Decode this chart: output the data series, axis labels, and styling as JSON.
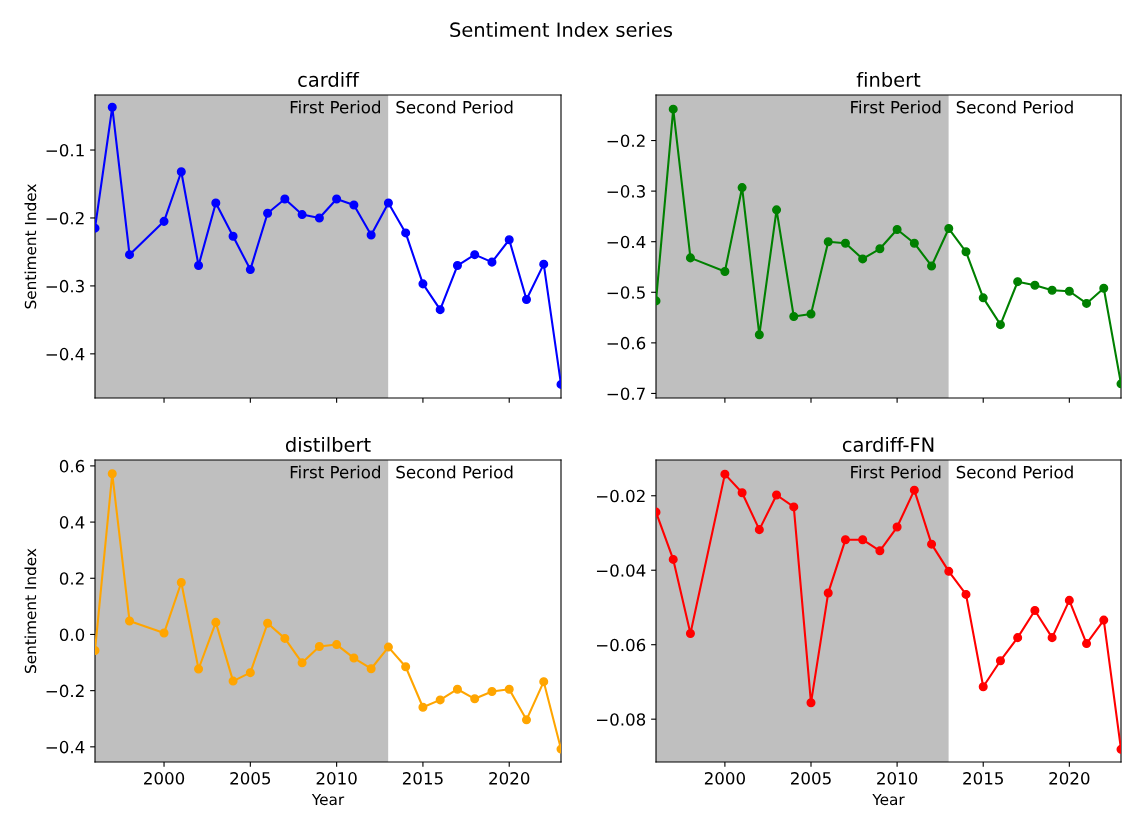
{
  "chart_data": [
    {
      "type": "line",
      "title": "cardiff",
      "ylabel": "Sentiment Index",
      "annotations": [
        "Sentiment Index series"
      ],
      "x": [
        1996,
        1997,
        1998,
        2000,
        2001,
        2002,
        2003,
        2004,
        2005,
        2006,
        2007,
        2008,
        2009,
        2010,
        2011,
        2012,
        2013,
        2014,
        2015,
        2016,
        2017,
        2018,
        2019,
        2020,
        2021,
        2022,
        2023
      ],
      "series": [
        {
          "color": "#0000ff",
          "values": [
            -0.215,
            -0.037,
            -0.254,
            -0.205,
            -0.132,
            -0.27,
            -0.178,
            -0.227,
            -0.276,
            -0.193,
            -0.172,
            -0.195,
            -0.2,
            -0.172,
            -0.181,
            -0.225,
            -0.178,
            -0.222,
            -0.297,
            -0.335,
            -0.27,
            -0.254,
            -0.265,
            -0.232,
            -0.32,
            -0.268,
            -0.445
          ]
        }
      ],
      "xlim": [
        1996,
        2023
      ],
      "xticks": [
        2000,
        2005,
        2010,
        2015,
        2020
      ],
      "ylim": [
        -0.465,
        -0.019
      ],
      "yticks": [
        -0.4,
        -0.3,
        -0.2,
        -0.1
      ],
      "bands": [
        {
          "axis": "x",
          "from": 1996,
          "to": 2013,
          "label": "First Period",
          "color": "#bfbfbf"
        },
        {
          "axis": "x",
          "from": 2013,
          "to": 2023,
          "label": "Second Period",
          "color": "#ffffff"
        }
      ],
      "tick_labels": "y",
      "marker": "circle",
      "line_style": "solid",
      "grid": false,
      "legend": false
    },
    {
      "type": "line",
      "title": "finbert",
      "x": [
        1996,
        1997,
        1998,
        2000,
        2001,
        2002,
        2003,
        2004,
        2005,
        2006,
        2007,
        2008,
        2009,
        2010,
        2011,
        2012,
        2013,
        2014,
        2015,
        2016,
        2017,
        2018,
        2019,
        2020,
        2021,
        2022,
        2023
      ],
      "series": [
        {
          "color": "#008000",
          "values": [
            -0.517,
            -0.138,
            -0.432,
            -0.459,
            -0.293,
            -0.584,
            -0.337,
            -0.548,
            -0.543,
            -0.4,
            -0.403,
            -0.434,
            -0.414,
            -0.376,
            -0.403,
            -0.448,
            -0.374,
            -0.42,
            -0.511,
            -0.564,
            -0.479,
            -0.486,
            -0.496,
            -0.498,
            -0.522,
            -0.492,
            -0.681
          ]
        }
      ],
      "xlim": [
        1996,
        2023
      ],
      "xticks": [
        2000,
        2005,
        2010,
        2015,
        2020
      ],
      "ylim": [
        -0.709,
        -0.11
      ],
      "yticks": [
        -0.7,
        -0.6,
        -0.5,
        -0.4,
        -0.3,
        -0.2
      ],
      "bands": [
        {
          "axis": "x",
          "from": 1996,
          "to": 2013,
          "label": "First Period",
          "color": "#bfbfbf"
        },
        {
          "axis": "x",
          "from": 2013,
          "to": 2023,
          "label": "Second Period",
          "color": "#ffffff"
        }
      ],
      "tick_labels": "y",
      "marker": "circle",
      "line_style": "solid",
      "grid": false,
      "legend": false
    },
    {
      "type": "line",
      "title": "distilbert",
      "xlabel": "Year",
      "ylabel": "Sentiment Index",
      "x": [
        1996,
        1997,
        1998,
        2000,
        2001,
        2002,
        2003,
        2004,
        2005,
        2006,
        2007,
        2008,
        2009,
        2010,
        2011,
        2012,
        2013,
        2014,
        2015,
        2016,
        2017,
        2018,
        2019,
        2020,
        2021,
        2022,
        2023
      ],
      "series": [
        {
          "color": "#ffa500",
          "values": [
            -0.057,
            0.572,
            0.048,
            0.005,
            0.185,
            -0.123,
            0.043,
            -0.166,
            -0.136,
            0.04,
            -0.014,
            -0.101,
            -0.043,
            -0.036,
            -0.084,
            -0.122,
            -0.045,
            -0.115,
            -0.259,
            -0.233,
            -0.195,
            -0.229,
            -0.203,
            -0.195,
            -0.304,
            -0.168,
            -0.408
          ]
        }
      ],
      "xlim": [
        1996,
        2023
      ],
      "xticks": [
        2000,
        2005,
        2010,
        2015,
        2020
      ],
      "ylim": [
        -0.454,
        0.621
      ],
      "yticks": [
        {
          "value": -0.4,
          "label": "−0.4"
        },
        {
          "value": -0.2,
          "label": "−0.2"
        },
        {
          "value": 0.0,
          "label": "0.0"
        },
        {
          "value": 0.2,
          "label": "0.2"
        },
        {
          "value": 0.4,
          "label": "0.4"
        },
        {
          "value": 0.6,
          "label": "0.6"
        }
      ],
      "bands": [
        {
          "axis": "x",
          "from": 1996,
          "to": 2013,
          "label": "First Period",
          "color": "#bfbfbf"
        },
        {
          "axis": "x",
          "from": 2013,
          "to": 2023,
          "label": "Second Period",
          "color": "#ffffff"
        }
      ],
      "marker": "circle",
      "line_style": "solid",
      "grid": false,
      "legend": false
    },
    {
      "type": "line",
      "title": "cardiff-FN",
      "xlabel": "Year",
      "x": [
        1996,
        1997,
        1998,
        2000,
        2001,
        2002,
        2003,
        2004,
        2005,
        2006,
        2007,
        2008,
        2009,
        2010,
        2011,
        2012,
        2013,
        2014,
        2015,
        2016,
        2017,
        2018,
        2019,
        2020,
        2021,
        2022,
        2023
      ],
      "series": [
        {
          "color": "#ff0000",
          "values": [
            -0.0244,
            -0.0371,
            -0.057,
            -0.0142,
            -0.0192,
            -0.0291,
            -0.0198,
            -0.023,
            -0.0756,
            -0.0461,
            -0.0318,
            -0.0318,
            -0.0348,
            -0.0284,
            -0.0185,
            -0.033,
            -0.0403,
            -0.0465,
            -0.0713,
            -0.0643,
            -0.0581,
            -0.0508,
            -0.0581,
            -0.0481,
            -0.0597,
            -0.0534,
            -0.0881
          ]
        }
      ],
      "xlim": [
        1996,
        2023
      ],
      "xticks": [
        2000,
        2005,
        2010,
        2015,
        2020
      ],
      "ylim": [
        -0.0915,
        -0.0104
      ],
      "yticks": [
        -0.08,
        -0.06,
        -0.04,
        -0.02
      ],
      "bands": [
        {
          "axis": "x",
          "from": 1996,
          "to": 2013,
          "label": "First Period",
          "color": "#bfbfbf"
        },
        {
          "axis": "x",
          "from": 2013,
          "to": 2023,
          "label": "Second Period",
          "color": "#ffffff"
        }
      ],
      "marker": "circle",
      "line_style": "solid",
      "grid": false,
      "legend": false
    }
  ]
}
